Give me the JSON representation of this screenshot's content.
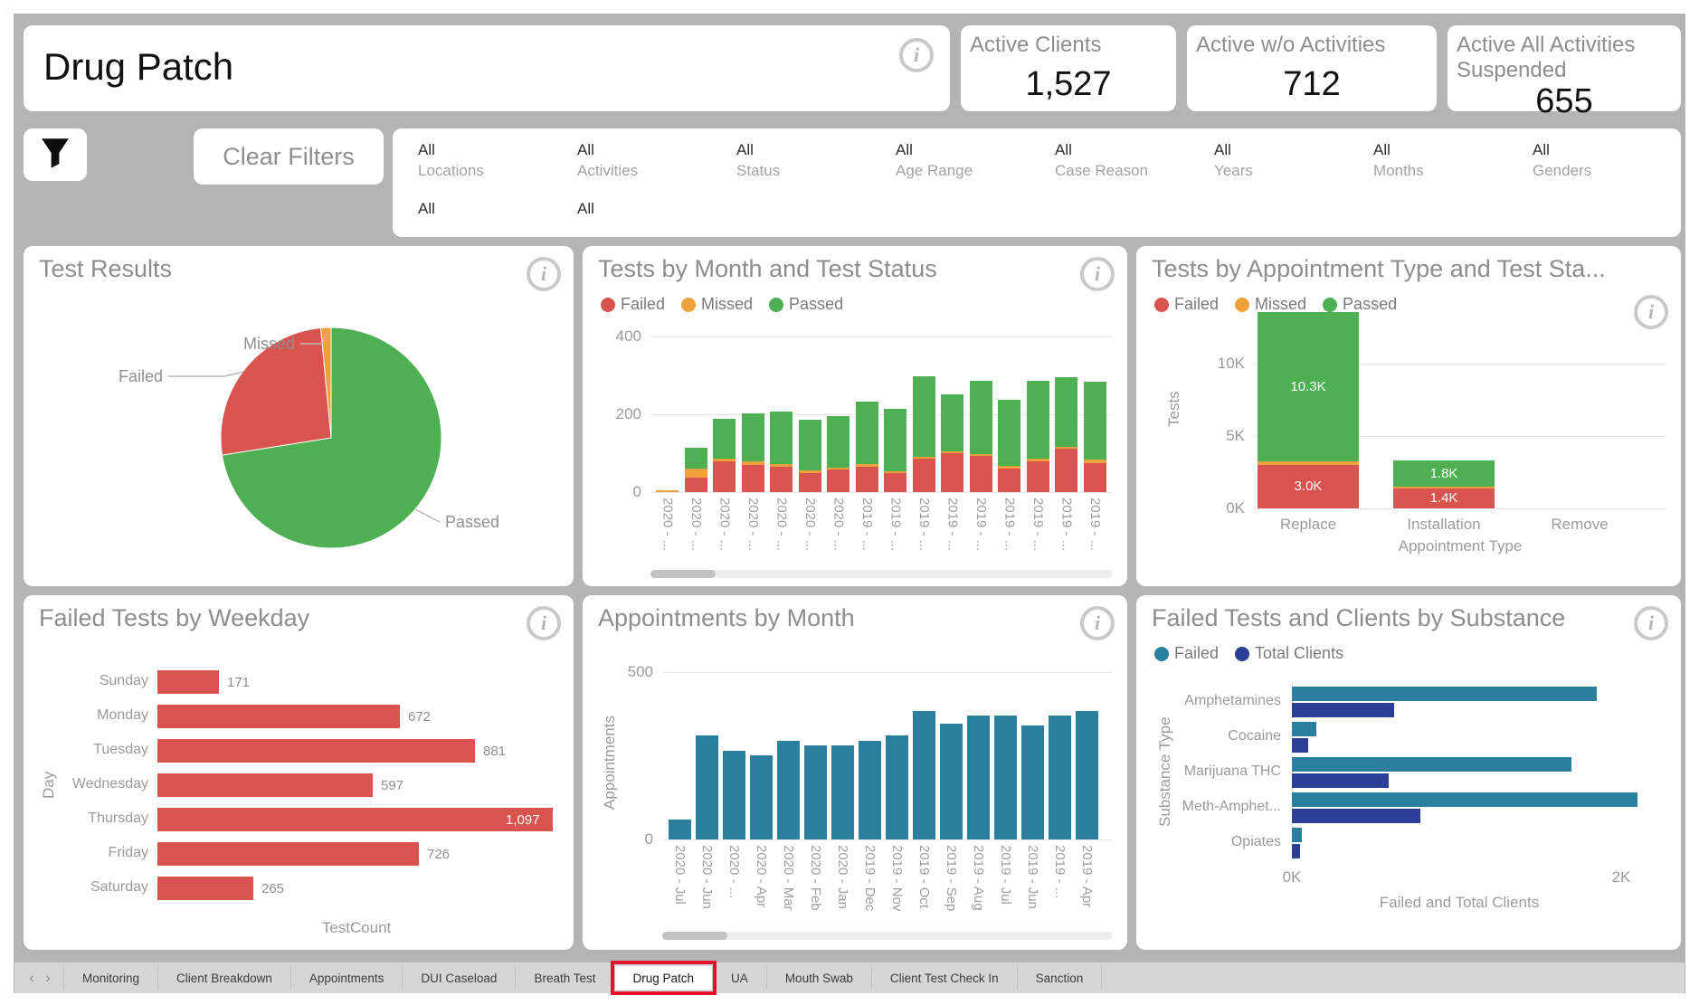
{
  "header": {
    "title": "Drug Patch",
    "kpis": [
      {
        "label": "Active Clients",
        "value": "1,527"
      },
      {
        "label": "Active w/o Activities",
        "value": "712"
      },
      {
        "label": "Active All Activities Suspended",
        "value": "655"
      }
    ]
  },
  "filters": {
    "clear_label": "Clear Filters",
    "funnel_icon": "filter-funnel",
    "items": [
      {
        "value": "All",
        "label": "Locations"
      },
      {
        "value": "All",
        "label": "Activities"
      },
      {
        "value": "All",
        "label": "Status"
      },
      {
        "value": "All",
        "label": "Age Range"
      },
      {
        "value": "All",
        "label": "Case Reason"
      },
      {
        "value": "All",
        "label": "Years"
      },
      {
        "value": "All",
        "label": "Months"
      },
      {
        "value": "All",
        "label": "Genders"
      }
    ],
    "overflow_items": [
      {
        "value": "All"
      },
      {
        "value": "All"
      }
    ]
  },
  "colors": {
    "red": "#d9534f",
    "orange": "#efa13c",
    "green": "#4eb052",
    "teal": "#2b7f9e",
    "navy": "#2b3f96",
    "annotation_red": "#e8112d"
  },
  "chart_data": [
    {
      "id": "test-results",
      "type": "pie",
      "title": "Test Results",
      "slices": [
        {
          "label": "Passed",
          "pct": 72.5,
          "color_key": "green"
        },
        {
          "label": "Failed",
          "pct": 26.0,
          "color_key": "red"
        },
        {
          "label": "Missed",
          "pct": 1.5,
          "color_key": "orange"
        }
      ]
    },
    {
      "id": "tests-by-month",
      "type": "stacked-column",
      "title": "Tests by Month and Test Status",
      "legend": [
        {
          "name": "Failed",
          "color_key": "red"
        },
        {
          "name": "Missed",
          "color_key": "orange"
        },
        {
          "name": "Passed",
          "color_key": "green"
        }
      ],
      "categories": [
        "2020 - ...",
        "2020 - ...",
        "2020 - ...",
        "2020 - ...",
        "2020 - ...",
        "2020 - ...",
        "2020 - ...",
        "2019 - ...",
        "2019 - ...",
        "2019 - ...",
        "2019 - ...",
        "2019 - ...",
        "2019 - ...",
        "2019 - ...",
        "2019 - ...",
        "2019 - ..."
      ],
      "series": [
        {
          "name": "Failed",
          "color_key": "red",
          "values": [
            0,
            38,
            80,
            70,
            65,
            48,
            58,
            65,
            48,
            85,
            100,
            92,
            60,
            80,
            112,
            75
          ]
        },
        {
          "name": "Missed",
          "color_key": "orange",
          "values": [
            5,
            22,
            6,
            10,
            6,
            8,
            5,
            8,
            6,
            5,
            4,
            6,
            8,
            5,
            5,
            8
          ]
        },
        {
          "name": "Passed",
          "color_key": "green",
          "values": [
            0,
            55,
            102,
            122,
            136,
            129,
            132,
            160,
            159,
            208,
            148,
            188,
            170,
            200,
            178,
            200
          ]
        }
      ],
      "ylim": [
        0,
        400
      ],
      "yticks": [
        0,
        200,
        400
      ],
      "ytick_labels": [
        "0",
        "200",
        "400"
      ],
      "has_scrollbar": true
    },
    {
      "id": "tests-by-appointment-type",
      "type": "stacked-column",
      "title": "Tests by Appointment Type and Test Sta...",
      "legend": [
        {
          "name": "Failed",
          "color_key": "red"
        },
        {
          "name": "Missed",
          "color_key": "orange"
        },
        {
          "name": "Passed",
          "color_key": "green"
        }
      ],
      "categories": [
        "Replace",
        "Installation",
        "Remove"
      ],
      "xlabel": "Appointment Type",
      "ylabel": "Tests",
      "series": [
        {
          "name": "Failed",
          "color_key": "red",
          "values": [
            3000,
            1400,
            0
          ],
          "value_labels": [
            "3.0K",
            "1.4K",
            ""
          ]
        },
        {
          "name": "Missed",
          "color_key": "orange",
          "values": [
            250,
            100,
            0
          ],
          "value_labels": [
            "",
            "",
            ""
          ]
        },
        {
          "name": "Passed",
          "color_key": "green",
          "values": [
            10300,
            1800,
            0
          ],
          "value_labels": [
            "10.3K",
            "1.8K",
            ""
          ]
        }
      ],
      "ylim": [
        0,
        13750
      ],
      "yticks": [
        0,
        5000,
        10000
      ],
      "ytick_labels": [
        "0K",
        "5K",
        "10K"
      ],
      "has_scrollbar": false
    },
    {
      "id": "failed-tests-by-weekday",
      "type": "bar-horizontal",
      "title": "Failed Tests by Weekday",
      "categories": [
        "Sunday",
        "Monday",
        "Tuesday",
        "Wednesday",
        "Thursday",
        "Friday",
        "Saturday"
      ],
      "values": [
        171,
        672,
        881,
        597,
        1097,
        726,
        265
      ],
      "value_labels": [
        "171",
        "672",
        "881",
        "597",
        "1,097",
        "726",
        "265"
      ],
      "label_inside": [
        false,
        false,
        false,
        false,
        true,
        false,
        false
      ],
      "xlabel": "TestCount",
      "ylabel": "Day",
      "xlim": [
        0,
        1150
      ],
      "color_key": "red"
    },
    {
      "id": "appointments-by-month",
      "type": "column",
      "title": "Appointments by Month",
      "categories": [
        "2020 - Jul",
        "2020 - Jun",
        "2020 - ...",
        "2020 - Apr",
        "2020 - Mar",
        "2020 - Feb",
        "2020 - Jan",
        "2019 - Dec",
        "2019 - Nov",
        "2019 - Oct",
        "2019 - Sep",
        "2019 - Aug",
        "2019 - Jul",
        "2019 - Jun",
        "2019 - ...",
        "2019 - Apr"
      ],
      "values": [
        60,
        310,
        265,
        250,
        295,
        280,
        280,
        295,
        310,
        385,
        345,
        370,
        370,
        340,
        370,
        385
      ],
      "ylabel": "Appointments",
      "ylim": [
        0,
        560
      ],
      "yticks": [
        0,
        500
      ],
      "ytick_labels": [
        "0",
        "500"
      ],
      "color_key": "teal",
      "has_scrollbar": true
    },
    {
      "id": "failed-tests-and-clients-by-substance",
      "type": "bar-horizontal-grouped",
      "title": "Failed Tests and Clients by Substance",
      "legend": [
        {
          "name": "Failed",
          "color_key": "teal"
        },
        {
          "name": "Total Clients",
          "color_key": "navy"
        }
      ],
      "categories": [
        "Amphetamines",
        "Cocaine",
        "Marijuana THC",
        "Meth-Amphet...",
        "Opiates"
      ],
      "series": [
        {
          "name": "Failed",
          "color_key": "teal",
          "values": [
            1850,
            150,
            1700,
            2100,
            60
          ]
        },
        {
          "name": "Total Clients",
          "color_key": "navy",
          "values": [
            620,
            100,
            590,
            780,
            50
          ]
        }
      ],
      "xlim": [
        0,
        2250
      ],
      "xticks": [
        0,
        2000
      ],
      "xtick_labels": [
        "0K",
        "2K"
      ],
      "xlabel": "Failed and Total Clients",
      "ylabel": "Substance Type"
    }
  ],
  "tabs": {
    "items": [
      "Monitoring",
      "Client Breakdown",
      "Appointments",
      "DUI Caseload",
      "Breath Test",
      "Drug Patch",
      "UA",
      "Mouth Swab",
      "Client Test Check In",
      "Sanction"
    ],
    "active": "Drug Patch"
  }
}
